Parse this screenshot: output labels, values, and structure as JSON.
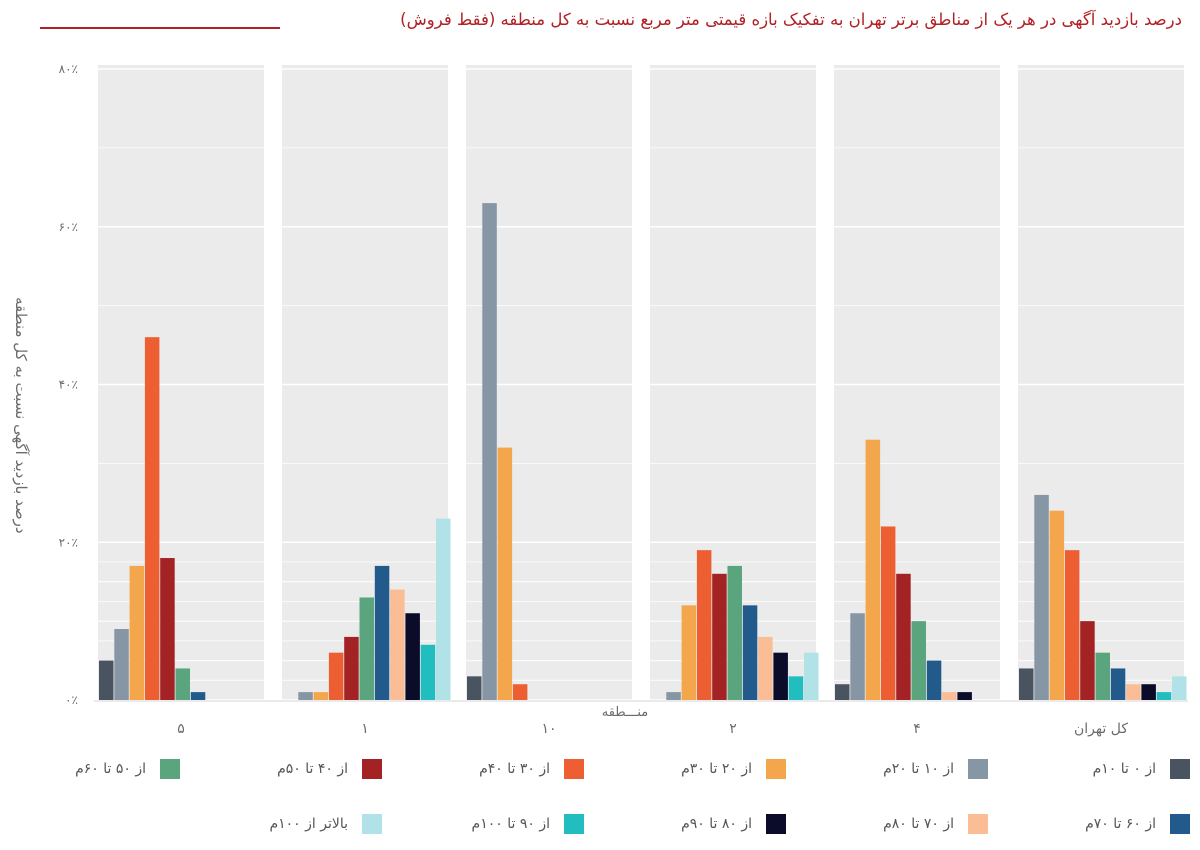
{
  "header": {
    "title": "درصد بازدید آگهی در هر یک از مناطق برتر تهران به تفکیک بازه قیمتی متر مربع نسبت به کل منطقه (فقط فروش)"
  },
  "colors": {
    "title": "#b21f24",
    "panel_bg": "#ebebeb",
    "gridline": "#ffffff",
    "text": "#6b6b6b"
  },
  "chart_data": {
    "type": "bar",
    "title": "درصد بازدید آگهی در هر یک از مناطق برتر تهران به تفکیک بازه قیمتی متر مربع نسبت به کل منطقه (فقط فروش)",
    "xlabel": "منـــطقه",
    "ylabel": "درصد بازدید آگهی نسبت به کل منطقه",
    "ylim": [
      0,
      80
    ],
    "yticks": [
      0,
      20,
      40,
      60,
      80
    ],
    "ytick_labels": [
      "۰٪",
      "۲۰٪",
      "۴۰٪",
      "۶۰٪",
      "۸۰٪"
    ],
    "grid": true,
    "legend_position": "bottom",
    "categories": [
      "۵",
      "۱",
      "۱۰",
      "۲",
      "۴",
      "کل تهران"
    ],
    "series": [
      {
        "name": "از ۰ تا ۱۰م",
        "color": "#4a5360",
        "values": [
          5,
          0,
          3,
          0,
          2,
          4
        ]
      },
      {
        "name": "از ۱۰ تا ۲۰م",
        "color": "#8796a4",
        "values": [
          9,
          1,
          63,
          1,
          11,
          26
        ]
      },
      {
        "name": "از ۲۰ تا ۳۰م",
        "color": "#f4a64d",
        "values": [
          17,
          1,
          32,
          12,
          33,
          24
        ]
      },
      {
        "name": "از ۳۰ تا ۴۰م",
        "color": "#ee5e33",
        "values": [
          46,
          6,
          2,
          19,
          22,
          19
        ]
      },
      {
        "name": "از ۴۰ تا ۵۰م",
        "color": "#a32325",
        "values": [
          18,
          8,
          0,
          16,
          16,
          10
        ]
      },
      {
        "name": "از ۵۰ تا ۶۰م",
        "color": "#5aa57e",
        "values": [
          4,
          13,
          0,
          17,
          10,
          6
        ]
      },
      {
        "name": "از ۶۰ تا ۷۰م",
        "color": "#235a8c",
        "values": [
          1,
          17,
          0,
          12,
          5,
          4
        ]
      },
      {
        "name": "از ۷۰ تا ۸۰م",
        "color": "#fbbd96",
        "values": [
          0,
          14,
          0,
          8,
          1,
          2
        ]
      },
      {
        "name": "از ۸۰ تا ۹۰م",
        "color": "#0b0b2a",
        "values": [
          0,
          11,
          0,
          6,
          1,
          2
        ]
      },
      {
        "name": "از ۹۰ تا ۱۰۰م",
        "color": "#22bdbf",
        "values": [
          0,
          7,
          0,
          3,
          0,
          1
        ]
      },
      {
        "name": "بالاتر از ۱۰۰م",
        "color": "#b1e2e8",
        "values": [
          0,
          23,
          0,
          6,
          0,
          3
        ]
      }
    ]
  }
}
